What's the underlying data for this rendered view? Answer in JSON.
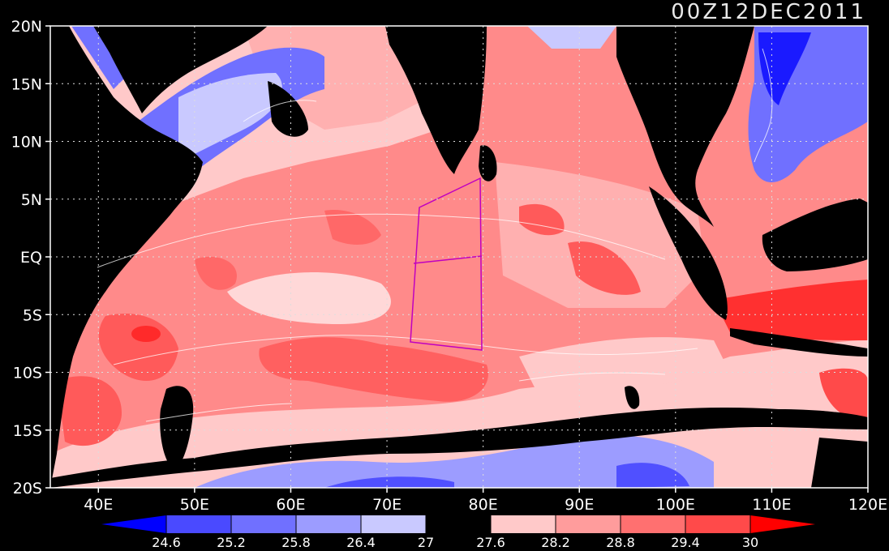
{
  "title": "00Z12DEC2011",
  "map": {
    "lon_range": [
      35,
      120
    ],
    "lat_range": [
      -20,
      20
    ],
    "lon_ticks": [
      {
        "v": 40,
        "label": "40E"
      },
      {
        "v": 50,
        "label": "50E"
      },
      {
        "v": 60,
        "label": "60E"
      },
      {
        "v": 70,
        "label": "70E"
      },
      {
        "v": 80,
        "label": "80E"
      },
      {
        "v": 90,
        "label": "90E"
      },
      {
        "v": 100,
        "label": "100E"
      },
      {
        "v": 110,
        "label": "110E"
      },
      {
        "v": 120,
        "label": "120E"
      }
    ],
    "lat_ticks": [
      {
        "v": 20,
        "label": "20N"
      },
      {
        "v": 15,
        "label": "15N"
      },
      {
        "v": 10,
        "label": "10N"
      },
      {
        "v": 5,
        "label": "5N"
      },
      {
        "v": 0,
        "label": "EQ"
      },
      {
        "v": -5,
        "label": "5S"
      },
      {
        "v": -10,
        "label": "10S"
      },
      {
        "v": -15,
        "label": "15S"
      },
      {
        "v": -20,
        "label": "20S"
      }
    ]
  },
  "colorbar": {
    "labels": [
      "24.6",
      "25.2",
      "25.8",
      "26.4",
      "27",
      "27.6",
      "28.2",
      "28.8",
      "29.4",
      "30"
    ],
    "colors": [
      "#0000ff",
      "#4a4aff",
      "#7070ff",
      "#9c9cff",
      "#c9c9ff",
      "#000000",
      "#ffc9c9",
      "#ff9c9c",
      "#ff7070",
      "#ff4a4a",
      "#ff0000"
    ]
  }
}
